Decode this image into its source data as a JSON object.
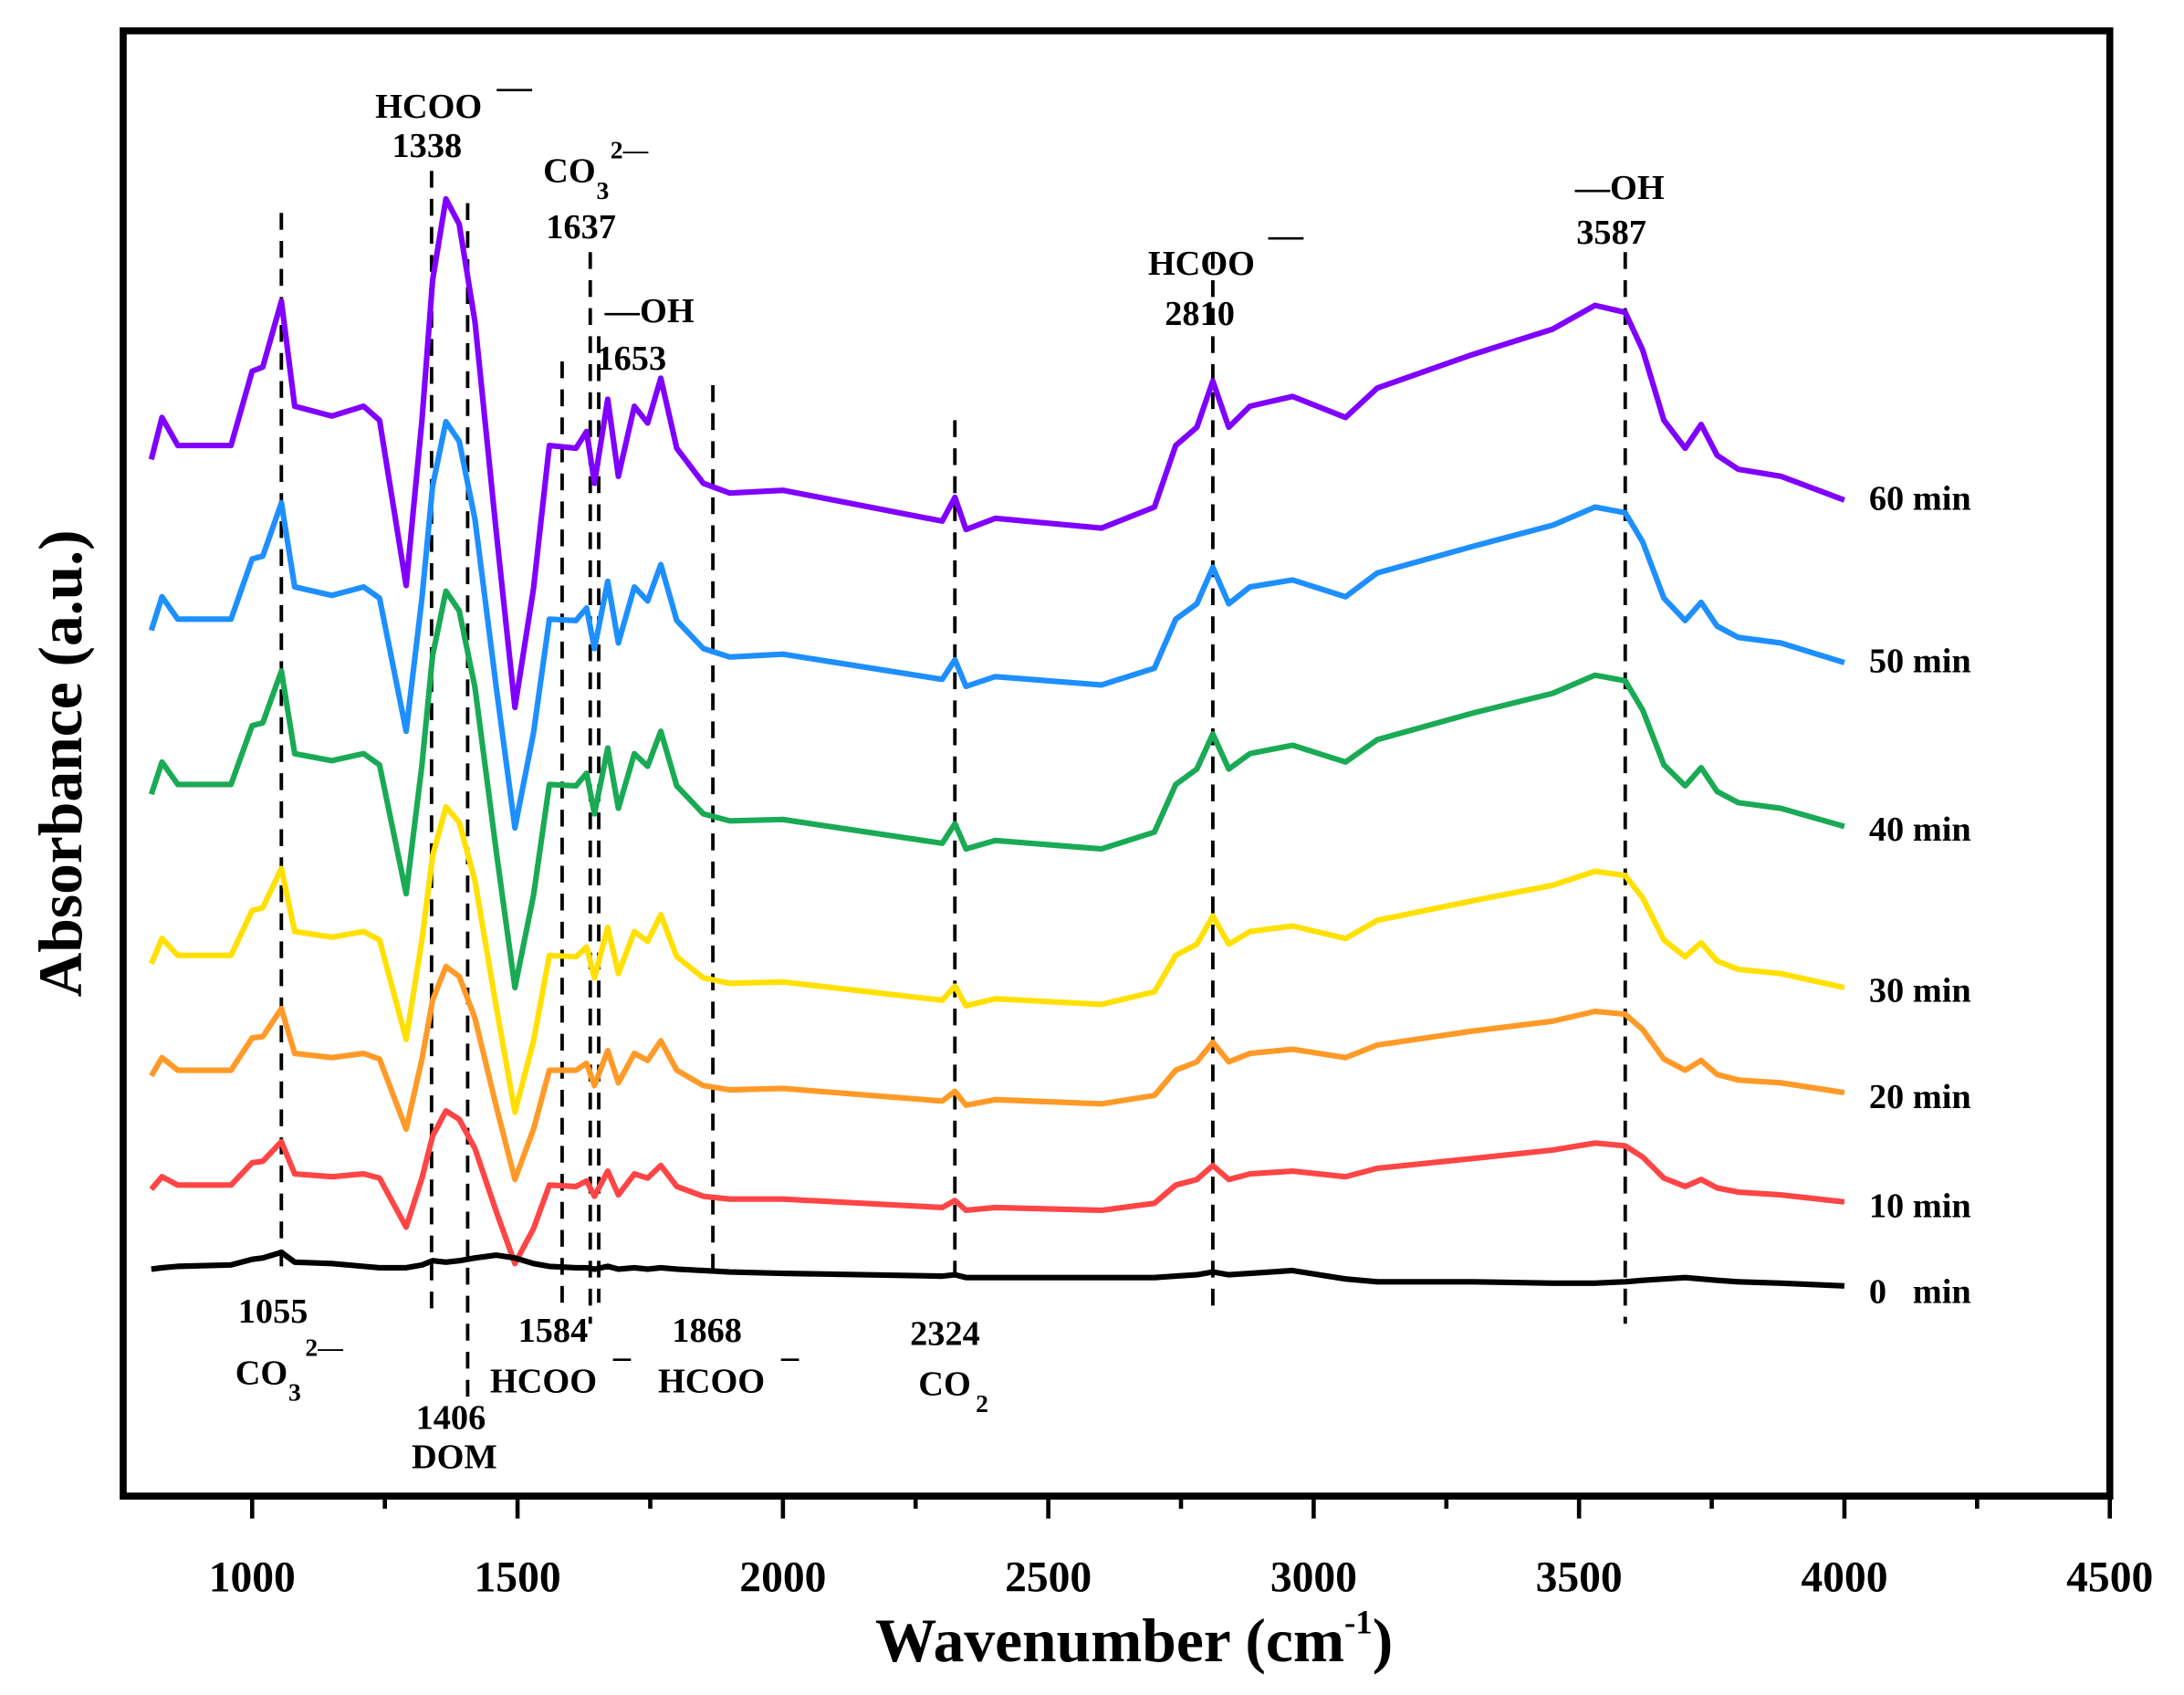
{
  "chart_data": {
    "type": "line",
    "title": "",
    "xlabel": "Wavenumber (cm-1)",
    "xlabel_main": "Wavenumber (cm",
    "xlabel_sup": "-1",
    "xlabel_close": ")",
    "ylabel": "Absorbance (a.u.)",
    "xlim": [
      757,
      4500
    ],
    "ylim": [
      0,
      104.6
    ],
    "xticks": [
      1000,
      1500,
      2000,
      2500,
      3000,
      3500,
      4000,
      4500
    ],
    "xtick_labels": [
      "1000",
      "1500",
      "2000",
      "2500",
      "3000",
      "3500",
      "4000",
      "4500"
    ],
    "yticks_shown": false,
    "grid": false,
    "x": [
      810,
      830,
      860,
      960,
      1000,
      1020,
      1055,
      1080,
      1150,
      1210,
      1240,
      1290,
      1320,
      1340,
      1365,
      1390,
      1420,
      1460,
      1495,
      1530,
      1560,
      1610,
      1630,
      1645,
      1670,
      1690,
      1720,
      1745,
      1770,
      1800,
      1850,
      1900,
      2000,
      2300,
      2324,
      2345,
      2400,
      2600,
      2700,
      2740,
      2780,
      2810,
      2840,
      2880,
      2960,
      3060,
      3120,
      3300,
      3450,
      3530,
      3587,
      3620,
      3660,
      3700,
      3730,
      3760,
      3800,
      3880,
      4000
    ],
    "series": [
      {
        "name": "60 min",
        "label": "60 min",
        "color": "#8000ff",
        "values": [
          74.0,
          77.0,
          75.0,
          75.0,
          80.3,
          80.6,
          85.3,
          77.8,
          77.1,
          77.8,
          76.8,
          65.0,
          76.8,
          86.8,
          92.6,
          90.8,
          83.8,
          68.8,
          56.3,
          64.8,
          75.0,
          74.8,
          76.0,
          72.3,
          78.3,
          72.8,
          77.8,
          76.6,
          79.8,
          74.8,
          72.3,
          71.6,
          71.8,
          69.6,
          71.3,
          69.0,
          69.8,
          69.1,
          70.6,
          75.0,
          76.3,
          79.6,
          76.3,
          77.8,
          78.5,
          77.0,
          79.1,
          81.5,
          83.3,
          85.0,
          84.5,
          81.8,
          76.8,
          74.8,
          76.5,
          74.3,
          73.3,
          72.8,
          71.1
        ]
      },
      {
        "name": "50 min",
        "label": "50 min",
        "color": "#1e8fff",
        "values": [
          61.8,
          64.2,
          62.6,
          62.6,
          66.9,
          67.1,
          70.9,
          64.9,
          64.3,
          64.9,
          64.1,
          54.6,
          64.1,
          72.1,
          76.7,
          75.3,
          69.7,
          57.7,
          47.7,
          54.5,
          62.6,
          62.5,
          63.4,
          60.5,
          65.3,
          60.9,
          64.9,
          63.9,
          66.5,
          62.5,
          60.5,
          59.9,
          60.1,
          58.3,
          59.7,
          57.8,
          58.5,
          57.9,
          59.1,
          62.6,
          63.7,
          66.3,
          63.7,
          64.9,
          65.4,
          64.2,
          65.9,
          67.8,
          69.3,
          70.6,
          70.2,
          68.1,
          64.1,
          62.5,
          63.8,
          62.1,
          61.3,
          60.9,
          59.5
        ]
      },
      {
        "name": "40 min",
        "label": "40 min",
        "color": "#1aaa55",
        "values": [
          50.1,
          52.4,
          50.8,
          50.8,
          55.0,
          55.2,
          58.9,
          53.0,
          52.5,
          53.0,
          52.2,
          43.0,
          52.2,
          60.0,
          64.6,
          63.2,
          57.7,
          46.0,
          36.3,
          42.9,
          50.8,
          50.7,
          51.6,
          48.7,
          53.4,
          49.1,
          53.0,
          52.1,
          54.6,
          50.7,
          48.7,
          48.2,
          48.3,
          46.6,
          48.0,
          46.2,
          46.8,
          46.2,
          47.4,
          50.8,
          51.9,
          54.4,
          51.9,
          53.0,
          53.6,
          52.4,
          54.0,
          55.9,
          57.3,
          58.6,
          58.2,
          56.1,
          52.2,
          50.7,
          52.0,
          50.3,
          49.5,
          49.1,
          47.8
        ]
      },
      {
        "name": "30 min",
        "label": "30 min",
        "color": "#ffe000",
        "values": [
          38.0,
          39.8,
          38.6,
          38.6,
          41.8,
          42.0,
          44.8,
          40.3,
          39.9,
          40.3,
          39.7,
          32.6,
          39.7,
          45.7,
          49.2,
          48.1,
          43.9,
          34.9,
          27.4,
          32.5,
          38.6,
          38.5,
          39.2,
          37.0,
          40.6,
          37.3,
          40.3,
          39.6,
          41.5,
          38.5,
          37.0,
          36.6,
          36.7,
          35.4,
          36.4,
          35.0,
          35.5,
          35.1,
          36.0,
          38.6,
          39.4,
          41.4,
          39.4,
          40.3,
          40.7,
          39.8,
          41.1,
          42.5,
          43.6,
          44.6,
          44.3,
          42.7,
          39.7,
          38.5,
          39.5,
          38.2,
          37.6,
          37.3,
          36.3
        ]
      },
      {
        "name": "20 min",
        "label": "20 min",
        "color": "#ff9a28",
        "values": [
          30.0,
          31.3,
          30.4,
          30.4,
          32.7,
          32.8,
          34.8,
          31.6,
          31.3,
          31.6,
          31.2,
          26.2,
          31.2,
          35.4,
          37.8,
          37.1,
          34.1,
          27.8,
          22.6,
          26.2,
          30.4,
          30.4,
          30.9,
          29.3,
          31.8,
          29.5,
          31.6,
          31.1,
          32.5,
          30.4,
          29.3,
          29.0,
          29.1,
          28.2,
          28.9,
          27.9,
          28.3,
          28.0,
          28.6,
          30.4,
          31.0,
          32.4,
          31.0,
          31.6,
          31.9,
          31.3,
          32.2,
          33.2,
          33.9,
          34.6,
          34.4,
          33.3,
          31.2,
          30.4,
          31.1,
          30.1,
          29.7,
          29.5,
          28.8
        ]
      },
      {
        "name": "10 min",
        "label": "10 min",
        "color": "#ff4545",
        "values": [
          21.9,
          22.8,
          22.2,
          22.2,
          23.8,
          23.9,
          25.3,
          23.0,
          22.8,
          23.0,
          22.7,
          19.2,
          22.7,
          25.7,
          27.5,
          26.9,
          24.8,
          20.3,
          16.6,
          19.1,
          22.2,
          22.1,
          22.5,
          21.4,
          23.2,
          21.5,
          23.0,
          22.7,
          23.6,
          22.1,
          21.4,
          21.2,
          21.2,
          20.6,
          21.1,
          20.4,
          20.6,
          20.4,
          20.9,
          22.2,
          22.6,
          23.6,
          22.6,
          23.0,
          23.2,
          22.8,
          23.4,
          24.1,
          24.7,
          25.2,
          25.0,
          24.2,
          22.7,
          22.1,
          22.6,
          22.0,
          21.7,
          21.5,
          21.0
        ]
      },
      {
        "name": "0 min",
        "label": "0   min",
        "color": "#000000",
        "values": [
          16.2,
          16.3,
          16.4,
          16.5,
          16.9,
          17.0,
          17.4,
          16.7,
          16.6,
          16.4,
          16.3,
          16.3,
          16.5,
          16.8,
          16.7,
          16.8,
          17.0,
          17.2,
          17.0,
          16.6,
          16.4,
          16.3,
          16.3,
          16.2,
          16.4,
          16.2,
          16.3,
          16.2,
          16.3,
          16.2,
          16.1,
          16.0,
          15.9,
          15.7,
          15.8,
          15.6,
          15.6,
          15.6,
          15.6,
          15.7,
          15.8,
          16.0,
          15.8,
          15.9,
          16.1,
          15.5,
          15.3,
          15.3,
          15.2,
          15.2,
          15.3,
          15.4,
          15.5,
          15.6,
          15.5,
          15.4,
          15.3,
          15.2,
          15.0
        ]
      }
    ],
    "reference_lines": [
      1055,
      1338,
      1406,
      1584,
      1637,
      1653,
      1868,
      2324,
      2810,
      3587
    ],
    "annotations": {
      "a1338_species": "HCOO",
      "a1338_charge": "—",
      "a1338_value": "1338",
      "a1637_species": "CO",
      "a1637_sub": "3",
      "a1637_charge": "2—",
      "a1637_value": "1637",
      "a1653_species": "—OH",
      "a1653_value": "1653",
      "a2810_species": "HCOO",
      "a2810_charge": "—",
      "a2810_value": "2810",
      "a3587_species": "—OH",
      "a3587_value": "3587",
      "a1055_value": "1055",
      "a1055_species": "CO",
      "a1055_sub": "3",
      "a1055_charge": "2—",
      "a1406_value": "1406",
      "a1406_species": "DOM",
      "a1584_value": "1584",
      "a1584_species": "HCOO",
      "a1584_charge": "_",
      "a1868_value": "1868",
      "a1868_species": "HCOO",
      "a1868_charge": "_",
      "a2324_value": "2324",
      "a2324_species": "CO",
      "a2324_sub": "2"
    }
  }
}
